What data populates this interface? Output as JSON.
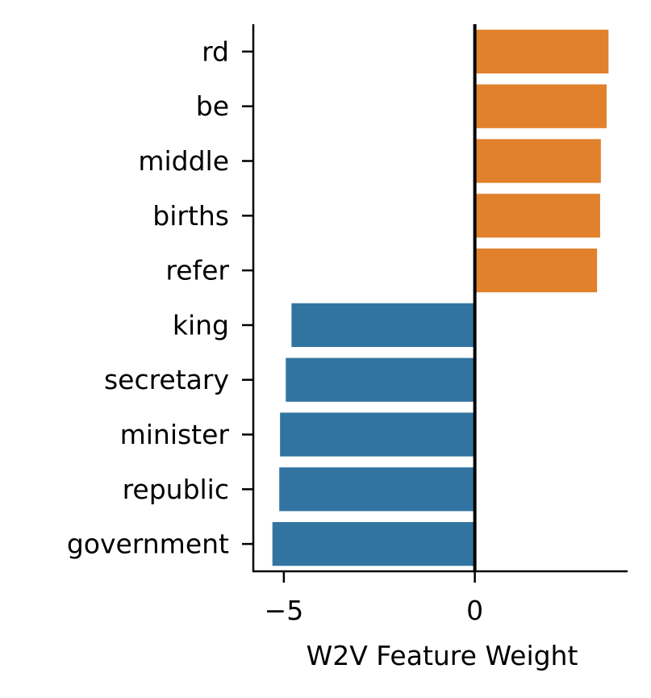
{
  "chart_data": {
    "type": "bar",
    "orientation": "horizontal",
    "categories": [
      "rd",
      "be",
      "middle",
      "births",
      "refer",
      "king",
      "secretary",
      "minister",
      "republic",
      "government"
    ],
    "values": [
      3.5,
      3.45,
      3.3,
      3.28,
      3.2,
      -4.8,
      -4.95,
      -5.1,
      -5.12,
      -5.3
    ],
    "bar_colors": [
      "#e1812c",
      "#e1812c",
      "#e1812c",
      "#e1812c",
      "#e1812c",
      "#3274a1",
      "#3274a1",
      "#3274a1",
      "#3274a1",
      "#3274a1"
    ],
    "xlabel": "W2V Feature Weight",
    "ylabel": "",
    "title": "",
    "xlim": [
      -5.8,
      4.0
    ],
    "xticks": [
      -5,
      0
    ],
    "xtick_labels": [
      "−5",
      "0"
    ],
    "zero_line": true,
    "grid": false
  }
}
